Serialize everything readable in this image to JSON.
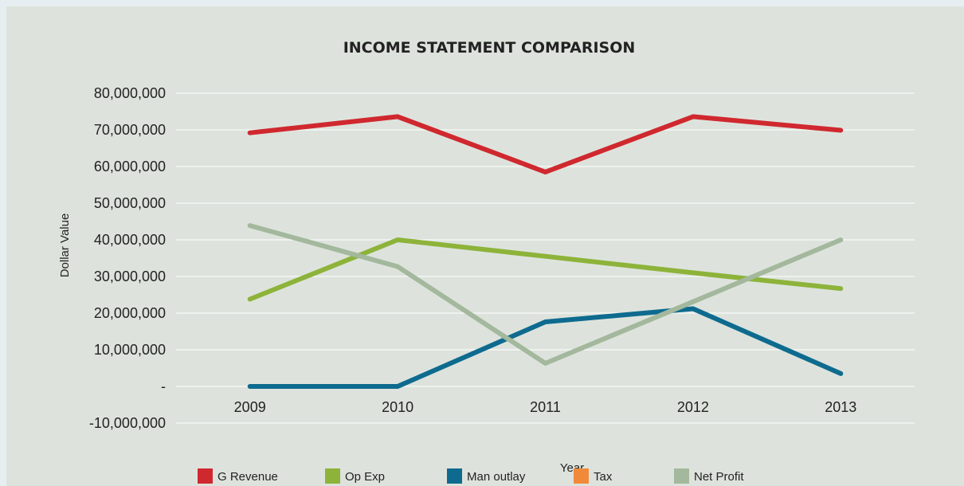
{
  "chart_data": {
    "type": "line",
    "title": "INCOME STATEMENT COMPARISON",
    "xlabel": "Year",
    "ylabel": "Dollar Value",
    "categories": [
      "2009",
      "2010",
      "2011",
      "2012",
      "2013"
    ],
    "ylim": [
      -10000000,
      80000000
    ],
    "yticks": [
      -10000000,
      0,
      10000000,
      20000000,
      30000000,
      40000000,
      50000000,
      60000000,
      70000000,
      80000000
    ],
    "ytick_labels": [
      "-10,000,000",
      "-",
      "10,000,000",
      "20,000,000",
      "30,000,000",
      "40,000,000",
      "50,000,000",
      "60,000,000",
      "70,000,000",
      "80,000,000"
    ],
    "grid": true,
    "legend_position": "bottom",
    "series": [
      {
        "name": "G Revenue",
        "color": "#d0282f",
        "values": [
          69200000,
          73600000,
          58500000,
          73600000,
          69900000
        ]
      },
      {
        "name": "Op Exp",
        "color": "#8db33a",
        "values": [
          23800000,
          40000000,
          35500000,
          31000000,
          26700000
        ]
      },
      {
        "name": "Man outlay",
        "color": "#0e6b8f",
        "values": [
          0,
          0,
          17600000,
          21200000,
          3500000
        ]
      },
      {
        "name": "Tax",
        "color": "#f08a3a",
        "values": [
          null,
          null,
          null,
          null,
          null
        ]
      },
      {
        "name": "Net Profit",
        "color": "#a3b89c",
        "values": [
          43900000,
          32700000,
          6300000,
          23100000,
          40000000
        ]
      }
    ]
  }
}
